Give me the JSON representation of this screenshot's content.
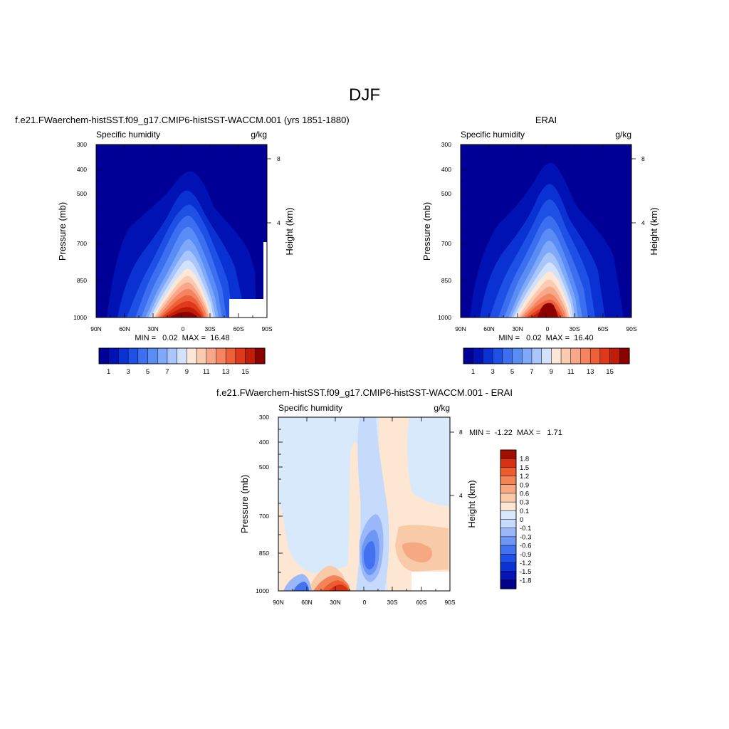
{
  "page": {
    "title": "DJF"
  },
  "chart_data": [
    {
      "type": "heatmap",
      "id": "model",
      "title": "f.e21.FWaerchem-histSST.f09_g17.CMIP6-histSST-WACCM.001 (yrs 1851-1880)",
      "left_label": "Specific humidity",
      "right_label": "g/kg",
      "ylabel": "Pressure (mb)",
      "ylabel_right": "Height (km)",
      "x_ticks": [
        "90N",
        "60N",
        "30N",
        "0",
        "30S",
        "60S",
        "90S"
      ],
      "y_ticks": [
        "300",
        "400",
        "500",
        "700",
        "850",
        "1000"
      ],
      "height_ticks": [
        "8",
        "4"
      ],
      "xlim": [
        90,
        -90
      ],
      "ylim": [
        1000,
        300
      ],
      "stats": "MIN =   0.02  MAX =  16.48",
      "min": 0.02,
      "max": 16.48,
      "colorbar_labels": [
        "1",
        "3",
        "5",
        "7",
        "9",
        "11",
        "13",
        "15"
      ],
      "colorbar_levels": [
        0,
        1,
        2,
        3,
        4,
        5,
        6,
        7,
        8,
        9,
        10,
        11,
        12,
        13,
        14,
        15,
        16
      ]
    },
    {
      "type": "heatmap",
      "id": "obs",
      "title": "ERAI",
      "left_label": "Specific humidity",
      "right_label": "g/kg",
      "ylabel": "Pressure (mb)",
      "ylabel_right": "Height (km)",
      "x_ticks": [
        "90N",
        "60N",
        "30N",
        "0",
        "30S",
        "60S",
        "90S"
      ],
      "y_ticks": [
        "300",
        "400",
        "500",
        "700",
        "850",
        "1000"
      ],
      "height_ticks": [
        "8",
        "4"
      ],
      "xlim": [
        90,
        -90
      ],
      "ylim": [
        1000,
        300
      ],
      "stats": "MIN =   0.02  MAX =  16.40",
      "min": 0.02,
      "max": 16.4,
      "colorbar_labels": [
        "1",
        "3",
        "5",
        "7",
        "9",
        "11",
        "13",
        "15"
      ],
      "colorbar_levels": [
        0,
        1,
        2,
        3,
        4,
        5,
        6,
        7,
        8,
        9,
        10,
        11,
        12,
        13,
        14,
        15,
        16
      ]
    },
    {
      "type": "heatmap",
      "id": "diff",
      "title": "f.e21.FWaerchem-histSST.f09_g17.CMIP6-histSST-WACCM.001 - ERAI",
      "left_label": "Specific humidity",
      "right_label": "g/kg",
      "ylabel": "Pressure (mb)",
      "ylabel_right": "Height (km)",
      "x_ticks": [
        "90N",
        "60N",
        "30N",
        "0",
        "30S",
        "60S",
        "90S"
      ],
      "y_ticks": [
        "300",
        "400",
        "500",
        "700",
        "850",
        "1000"
      ],
      "height_ticks": [
        "8",
        "4"
      ],
      "xlim": [
        90,
        -90
      ],
      "ylim": [
        1000,
        300
      ],
      "stats": "MIN =  -1.22  MAX =   1.71",
      "min": -1.22,
      "max": 1.71,
      "colorbar_labels": [
        "1.8",
        "1.5",
        "1.2",
        "0.9",
        "0.6",
        "0.3",
        "0.1",
        "0",
        "-0.1",
        "-0.3",
        "-0.6",
        "-0.9",
        "-1.2",
        "-1.5",
        "-1.8"
      ],
      "colorbar_levels": [
        -1.8,
        -1.5,
        -1.2,
        -0.9,
        -0.6,
        -0.3,
        -0.1,
        0,
        0.1,
        0.3,
        0.6,
        0.9,
        1.2,
        1.5,
        1.8
      ]
    }
  ],
  "colors": {
    "seq": [
      "#000096",
      "#0012b4",
      "#0a32d2",
      "#1e50e6",
      "#3c6ef0",
      "#5a8cf5",
      "#7ea8fa",
      "#a8c6fc",
      "#d2e2fd",
      "#fde8d8",
      "#fbcab0",
      "#f8a888",
      "#f48560",
      "#ee6038",
      "#e0381a",
      "#c01c08",
      "#8c0000"
    ],
    "div_low_to_high": [
      "#00008c",
      "#0614b4",
      "#0a32d2",
      "#1e50e6",
      "#4272ef",
      "#6e96f5",
      "#9ab8f9",
      "#c6dbfb",
      "#d9e9fc",
      "#fde6d2",
      "#f9caa8",
      "#f6a882",
      "#f38458",
      "#ec5c30",
      "#d83212",
      "#a01000"
    ]
  }
}
